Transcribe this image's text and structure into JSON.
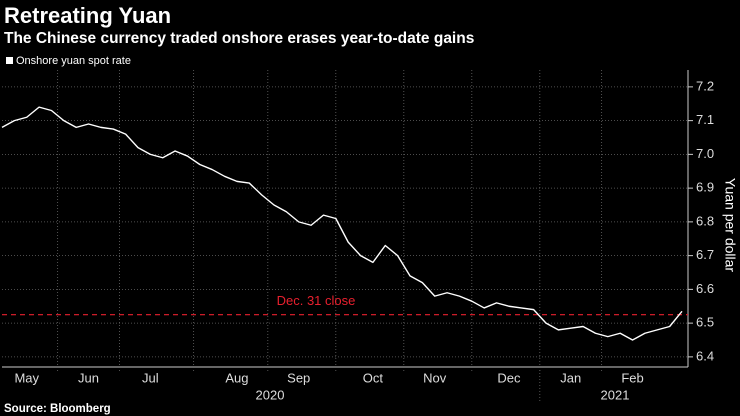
{
  "chart_data": {
    "type": "line",
    "title": "Retreating Yuan",
    "subtitle": "The Chinese currency traded onshore erases year-to-date gains",
    "y_label": "Yuan per dollar",
    "source": "Source: Bloomberg",
    "year_labels": [
      "2020",
      "2021"
    ],
    "categories": [
      null,
      null,
      "May",
      null,
      null,
      null,
      null,
      "Jun",
      null,
      null,
      null,
      null,
      "Jul",
      null,
      null,
      null,
      null,
      null,
      null,
      "Aug",
      null,
      null,
      null,
      null,
      "Sep",
      null,
      null,
      null,
      null,
      null,
      "Oct",
      null,
      null,
      null,
      null,
      "Nov",
      null,
      null,
      null,
      null,
      null,
      "Dec",
      null,
      null,
      null,
      null,
      "Jan",
      null,
      null,
      null,
      null,
      "Feb",
      null,
      null,
      null,
      null
    ],
    "series": [
      {
        "name": "Onshore yuan spot rate",
        "color": "#ffffff",
        "values": [
          7.08,
          7.1,
          7.11,
          7.14,
          7.13,
          7.1,
          7.08,
          7.09,
          7.08,
          7.075,
          7.06,
          7.02,
          7.0,
          6.99,
          7.01,
          6.995,
          6.97,
          6.955,
          6.935,
          6.92,
          6.915,
          6.88,
          6.85,
          6.83,
          6.8,
          6.79,
          6.82,
          6.81,
          6.74,
          6.7,
          6.68,
          6.73,
          6.7,
          6.64,
          6.62,
          6.58,
          6.59,
          6.58,
          6.565,
          6.545,
          6.56,
          6.55,
          6.545,
          6.54,
          6.5,
          6.48,
          6.485,
          6.49,
          6.47,
          6.46,
          6.47,
          6.45,
          6.47,
          6.48,
          6.49,
          6.535
        ]
      }
    ],
    "reference_line": {
      "value": 6.525,
      "label": "Dec. 31 close",
      "color": "#e8202e"
    },
    "ylim": [
      6.37,
      7.25
    ],
    "yticks": [
      6.4,
      6.5,
      6.6,
      6.7,
      6.8,
      6.9,
      {
        "value": 7.0,
        "label": "7.0"
      },
      7.1,
      7.2
    ],
    "grid": true
  }
}
